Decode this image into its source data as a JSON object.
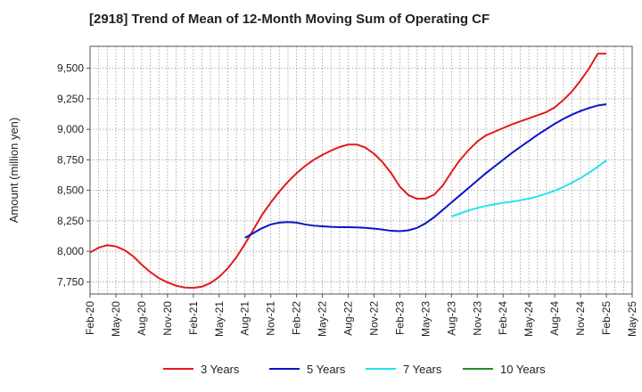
{
  "chart_data": {
    "type": "line",
    "title": "[2918]  Trend of Mean of 12-Month Moving Sum of Operating CF",
    "xlabel": "",
    "ylabel": "Amount (million yen)",
    "ylim": [
      7650,
      9680
    ],
    "yticks": [
      7750,
      8000,
      8250,
      8500,
      8750,
      9000,
      9250,
      9500
    ],
    "ytick_labels": [
      "7,750",
      "8,000",
      "8,250",
      "8,500",
      "8,750",
      "9,000",
      "9,250",
      "9,500"
    ],
    "x_tick_labels": [
      "Feb-20",
      "May-20",
      "Aug-20",
      "Nov-20",
      "Feb-21",
      "May-21",
      "Aug-21",
      "Nov-21",
      "Feb-22",
      "May-22",
      "Aug-22",
      "Nov-22",
      "Feb-23",
      "May-23",
      "Aug-23",
      "Nov-23",
      "Feb-24",
      "May-24",
      "Aug-24",
      "Nov-24",
      "Feb-25",
      "May-25"
    ],
    "x_start": "2020-02",
    "x_range_months": [
      0,
      63
    ],
    "grid": true,
    "legend_position": "bottom",
    "series": [
      {
        "name": "3 Years",
        "color": "#e31a1c",
        "x_months": [
          0,
          1,
          2,
          3,
          4,
          5,
          6,
          7,
          8,
          9,
          10,
          11,
          12,
          13,
          14,
          15,
          16,
          17,
          18,
          19,
          20,
          21,
          22,
          23,
          24,
          25,
          26,
          27,
          28,
          29,
          30,
          31,
          32,
          33,
          34,
          35,
          36,
          37,
          38,
          39,
          40,
          41,
          42,
          43,
          44,
          45,
          46,
          47,
          48,
          49,
          50,
          51,
          52,
          53,
          54,
          55,
          56,
          57,
          58,
          59,
          60
        ],
        "values": [
          7990,
          8030,
          8050,
          8040,
          8010,
          7960,
          7890,
          7830,
          7780,
          7745,
          7718,
          7703,
          7700,
          7710,
          7740,
          7790,
          7860,
          7950,
          8060,
          8180,
          8300,
          8400,
          8490,
          8570,
          8640,
          8700,
          8750,
          8790,
          8825,
          8855,
          8875,
          8875,
          8850,
          8800,
          8730,
          8640,
          8530,
          8460,
          8430,
          8432,
          8465,
          8540,
          8650,
          8750,
          8830,
          8900,
          8950,
          8980,
          9010,
          9040,
          9065,
          9090,
          9115,
          9140,
          9180,
          9240,
          9310,
          9400,
          9500,
          9620,
          9620
        ]
      },
      {
        "name": "5 Years",
        "color": "#0a14c8",
        "x_months": [
          18,
          19,
          20,
          21,
          22,
          23,
          24,
          25,
          26,
          27,
          28,
          29,
          30,
          31,
          32,
          33,
          34,
          35,
          36,
          37,
          38,
          39,
          40,
          41,
          42,
          43,
          44,
          45,
          46,
          47,
          48,
          49,
          50,
          51,
          52,
          53,
          54,
          55,
          56,
          57,
          58,
          59,
          60
        ],
        "values": [
          8110,
          8150,
          8190,
          8220,
          8235,
          8240,
          8235,
          8220,
          8210,
          8205,
          8200,
          8198,
          8198,
          8196,
          8192,
          8186,
          8178,
          8168,
          8165,
          8172,
          8192,
          8230,
          8280,
          8340,
          8400,
          8460,
          8520,
          8580,
          8640,
          8695,
          8750,
          8805,
          8855,
          8905,
          8955,
          9000,
          9045,
          9085,
          9120,
          9150,
          9175,
          9195,
          9205
        ]
      },
      {
        "name": "7 Years",
        "color": "#22e6ee",
        "x_months": [
          42,
          43,
          44,
          45,
          46,
          47,
          48,
          49,
          50,
          51,
          52,
          53,
          54,
          55,
          56,
          57,
          58,
          59,
          60
        ],
        "values": [
          8285,
          8310,
          8335,
          8355,
          8372,
          8385,
          8397,
          8407,
          8418,
          8432,
          8450,
          8472,
          8497,
          8527,
          8562,
          8600,
          8645,
          8693,
          8745
        ]
      },
      {
        "name": "10 Years",
        "color": "#2a8a2a",
        "x_months": [],
        "values": []
      }
    ]
  }
}
